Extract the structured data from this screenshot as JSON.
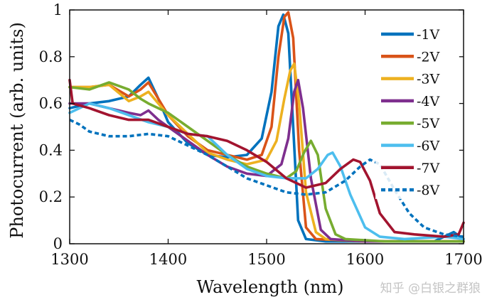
{
  "watermark": "知乎 @白银之群狼",
  "chart_data": {
    "type": "line",
    "title": "",
    "xlabel": "Wavelength (nm)",
    "ylabel": "Photocurrent (arb. units)",
    "xlim": [
      1300,
      1700
    ],
    "ylim": [
      0,
      1
    ],
    "xticks": [
      "1300",
      "1400",
      "1500",
      "1600",
      "1700"
    ],
    "yticks": [
      "0",
      "0.2",
      "0.4",
      "0.6",
      "0.8",
      "1"
    ],
    "legend_position": "top-right",
    "grid": false,
    "series": [
      {
        "name": "-1V",
        "color": "#0072BD",
        "dash": false,
        "points": [
          [
            1300,
            0.58
          ],
          [
            1320,
            0.6
          ],
          [
            1340,
            0.61
          ],
          [
            1360,
            0.63
          ],
          [
            1372,
            0.68
          ],
          [
            1380,
            0.71
          ],
          [
            1390,
            0.62
          ],
          [
            1400,
            0.52
          ],
          [
            1420,
            0.43
          ],
          [
            1440,
            0.38
          ],
          [
            1460,
            0.37
          ],
          [
            1480,
            0.38
          ],
          [
            1495,
            0.45
          ],
          [
            1505,
            0.65
          ],
          [
            1512,
            0.93
          ],
          [
            1517,
            0.98
          ],
          [
            1522,
            0.9
          ],
          [
            1527,
            0.5
          ],
          [
            1532,
            0.1
          ],
          [
            1540,
            0.02
          ],
          [
            1560,
            0.01
          ],
          [
            1600,
            0.01
          ],
          [
            1640,
            0.01
          ],
          [
            1670,
            0.01
          ],
          [
            1690,
            0.05
          ],
          [
            1700,
            0.02
          ]
        ]
      },
      {
        "name": "-2V",
        "color": "#D95319",
        "dash": false,
        "points": [
          [
            1300,
            0.67
          ],
          [
            1320,
            0.67
          ],
          [
            1340,
            0.68
          ],
          [
            1360,
            0.63
          ],
          [
            1372,
            0.66
          ],
          [
            1380,
            0.69
          ],
          [
            1390,
            0.62
          ],
          [
            1400,
            0.55
          ],
          [
            1420,
            0.46
          ],
          [
            1440,
            0.4
          ],
          [
            1460,
            0.38
          ],
          [
            1480,
            0.36
          ],
          [
            1495,
            0.38
          ],
          [
            1505,
            0.5
          ],
          [
            1512,
            0.8
          ],
          [
            1518,
            0.97
          ],
          [
            1522,
            0.99
          ],
          [
            1527,
            0.88
          ],
          [
            1533,
            0.4
          ],
          [
            1540,
            0.07
          ],
          [
            1550,
            0.02
          ],
          [
            1600,
            0.01
          ],
          [
            1640,
            0.01
          ],
          [
            1700,
            0.01
          ]
        ]
      },
      {
        "name": "-3V",
        "color": "#EDB120",
        "dash": false,
        "points": [
          [
            1300,
            0.67
          ],
          [
            1320,
            0.67
          ],
          [
            1340,
            0.68
          ],
          [
            1360,
            0.61
          ],
          [
            1372,
            0.63
          ],
          [
            1380,
            0.65
          ],
          [
            1390,
            0.6
          ],
          [
            1400,
            0.55
          ],
          [
            1420,
            0.47
          ],
          [
            1440,
            0.39
          ],
          [
            1460,
            0.36
          ],
          [
            1480,
            0.34
          ],
          [
            1500,
            0.36
          ],
          [
            1510,
            0.44
          ],
          [
            1518,
            0.62
          ],
          [
            1524,
            0.74
          ],
          [
            1528,
            0.77
          ],
          [
            1533,
            0.6
          ],
          [
            1540,
            0.22
          ],
          [
            1550,
            0.05
          ],
          [
            1560,
            0.02
          ],
          [
            1600,
            0.01
          ],
          [
            1700,
            0.01
          ]
        ]
      },
      {
        "name": "-4V",
        "color": "#7E2F8E",
        "dash": false,
        "points": [
          [
            1300,
            0.6
          ],
          [
            1320,
            0.6
          ],
          [
            1340,
            0.58
          ],
          [
            1360,
            0.56
          ],
          [
            1372,
            0.55
          ],
          [
            1380,
            0.57
          ],
          [
            1390,
            0.53
          ],
          [
            1400,
            0.5
          ],
          [
            1420,
            0.44
          ],
          [
            1440,
            0.38
          ],
          [
            1460,
            0.33
          ],
          [
            1480,
            0.3
          ],
          [
            1500,
            0.29
          ],
          [
            1515,
            0.34
          ],
          [
            1522,
            0.45
          ],
          [
            1528,
            0.65
          ],
          [
            1532,
            0.7
          ],
          [
            1537,
            0.58
          ],
          [
            1545,
            0.28
          ],
          [
            1555,
            0.06
          ],
          [
            1565,
            0.02
          ],
          [
            1600,
            0.01
          ],
          [
            1700,
            0.01
          ]
        ]
      },
      {
        "name": "-5V",
        "color": "#77AC30",
        "dash": false,
        "points": [
          [
            1300,
            0.67
          ],
          [
            1320,
            0.66
          ],
          [
            1340,
            0.69
          ],
          [
            1360,
            0.66
          ],
          [
            1372,
            0.62
          ],
          [
            1380,
            0.6
          ],
          [
            1390,
            0.58
          ],
          [
            1400,
            0.56
          ],
          [
            1420,
            0.5
          ],
          [
            1440,
            0.44
          ],
          [
            1460,
            0.38
          ],
          [
            1480,
            0.33
          ],
          [
            1500,
            0.3
          ],
          [
            1520,
            0.28
          ],
          [
            1530,
            0.31
          ],
          [
            1538,
            0.39
          ],
          [
            1545,
            0.44
          ],
          [
            1552,
            0.38
          ],
          [
            1560,
            0.15
          ],
          [
            1570,
            0.04
          ],
          [
            1580,
            0.02
          ],
          [
            1620,
            0.01
          ],
          [
            1700,
            0.01
          ]
        ]
      },
      {
        "name": "-6V",
        "color": "#4DBEEE",
        "dash": false,
        "points": [
          [
            1300,
            0.56
          ],
          [
            1320,
            0.6
          ],
          [
            1340,
            0.58
          ],
          [
            1360,
            0.55
          ],
          [
            1380,
            0.52
          ],
          [
            1400,
            0.5
          ],
          [
            1420,
            0.47
          ],
          [
            1440,
            0.46
          ],
          [
            1460,
            0.38
          ],
          [
            1480,
            0.32
          ],
          [
            1500,
            0.29
          ],
          [
            1520,
            0.28
          ],
          [
            1540,
            0.28
          ],
          [
            1552,
            0.32
          ],
          [
            1562,
            0.38
          ],
          [
            1567,
            0.39
          ],
          [
            1575,
            0.33
          ],
          [
            1585,
            0.21
          ],
          [
            1600,
            0.07
          ],
          [
            1615,
            0.03
          ],
          [
            1640,
            0.02
          ],
          [
            1680,
            0.03
          ],
          [
            1700,
            0.02
          ]
        ]
      },
      {
        "name": "-7V",
        "color": "#A2142F",
        "dash": false,
        "points": [
          [
            1300,
            0.7
          ],
          [
            1303,
            0.6
          ],
          [
            1320,
            0.58
          ],
          [
            1340,
            0.55
          ],
          [
            1360,
            0.53
          ],
          [
            1380,
            0.53
          ],
          [
            1400,
            0.5
          ],
          [
            1420,
            0.47
          ],
          [
            1440,
            0.46
          ],
          [
            1460,
            0.44
          ],
          [
            1480,
            0.4
          ],
          [
            1500,
            0.35
          ],
          [
            1520,
            0.28
          ],
          [
            1540,
            0.24
          ],
          [
            1560,
            0.26
          ],
          [
            1575,
            0.32
          ],
          [
            1588,
            0.36
          ],
          [
            1595,
            0.35
          ],
          [
            1605,
            0.27
          ],
          [
            1615,
            0.13
          ],
          [
            1630,
            0.05
          ],
          [
            1650,
            0.04
          ],
          [
            1680,
            0.03
          ],
          [
            1695,
            0.04
          ],
          [
            1700,
            0.09
          ]
        ]
      },
      {
        "name": "-8V",
        "color": "#0072BD",
        "dash": true,
        "points": [
          [
            1300,
            0.53
          ],
          [
            1310,
            0.51
          ],
          [
            1320,
            0.48
          ],
          [
            1340,
            0.46
          ],
          [
            1360,
            0.46
          ],
          [
            1380,
            0.47
          ],
          [
            1400,
            0.46
          ],
          [
            1420,
            0.42
          ],
          [
            1440,
            0.38
          ],
          [
            1460,
            0.33
          ],
          [
            1480,
            0.28
          ],
          [
            1500,
            0.25
          ],
          [
            1520,
            0.22
          ],
          [
            1540,
            0.21
          ],
          [
            1560,
            0.22
          ],
          [
            1580,
            0.27
          ],
          [
            1595,
            0.33
          ],
          [
            1605,
            0.36
          ],
          [
            1615,
            0.34
          ],
          [
            1630,
            0.23
          ],
          [
            1645,
            0.13
          ],
          [
            1660,
            0.07
          ],
          [
            1680,
            0.04
          ],
          [
            1700,
            0.03
          ]
        ]
      }
    ]
  }
}
